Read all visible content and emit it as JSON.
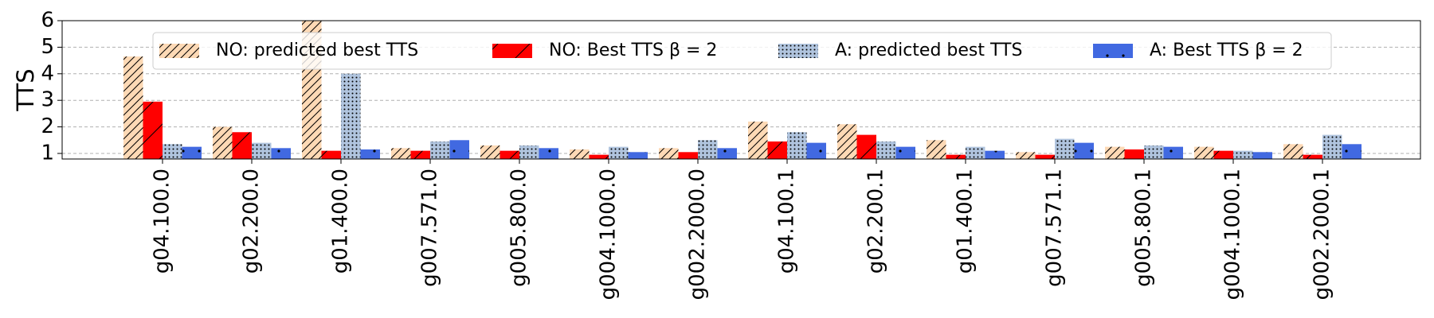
{
  "chart_data": {
    "type": "bar",
    "y_label": "TTS",
    "categories": [
      "g04.100.0",
      "g02.200.0",
      "g01.400.0",
      "g007.571.0",
      "g005.800.0",
      "g004.1000.0",
      "g002.2000.0",
      "g04.100.1",
      "g02.200.1",
      "g01.400.1",
      "g007.571.1",
      "g005.800.1",
      "g004.1000.1",
      "g002.2000.1"
    ],
    "series": [
      {
        "name": "NO: predicted best TTS",
        "color": "#fdd9b5",
        "hatch": "//",
        "values": [
          4.65,
          2.0,
          6.0,
          1.2,
          1.3,
          1.15,
          1.2,
          2.2,
          2.1,
          1.5,
          1.05,
          1.25,
          1.25,
          1.35
        ]
      },
      {
        "name": "NO: Best TTS β = 2",
        "color": "#ff0000",
        "hatch": "/",
        "values": [
          2.95,
          1.8,
          1.1,
          1.1,
          1.1,
          0.95,
          1.05,
          1.45,
          1.7,
          0.95,
          0.95,
          1.15,
          1.1,
          0.95
        ]
      },
      {
        "name": "A: predicted best TTS",
        "color": "#b0c4de",
        "hatch": "...",
        "values": [
          1.35,
          1.4,
          4.0,
          1.45,
          1.3,
          1.25,
          1.5,
          1.8,
          1.45,
          1.25,
          1.55,
          1.3,
          1.1,
          1.7
        ]
      },
      {
        "name": "A: Best TTS β = 2",
        "color": "#4169e1",
        "hatch": ".",
        "values": [
          1.25,
          1.2,
          1.15,
          1.5,
          1.2,
          1.05,
          1.2,
          1.4,
          1.25,
          1.1,
          1.4,
          1.25,
          1.05,
          1.35
        ]
      }
    ],
    "ylim": [
      0.79,
      6
    ],
    "yticks": [
      1,
      2,
      3,
      4,
      5,
      6
    ],
    "grid": true,
    "legend": "top"
  }
}
